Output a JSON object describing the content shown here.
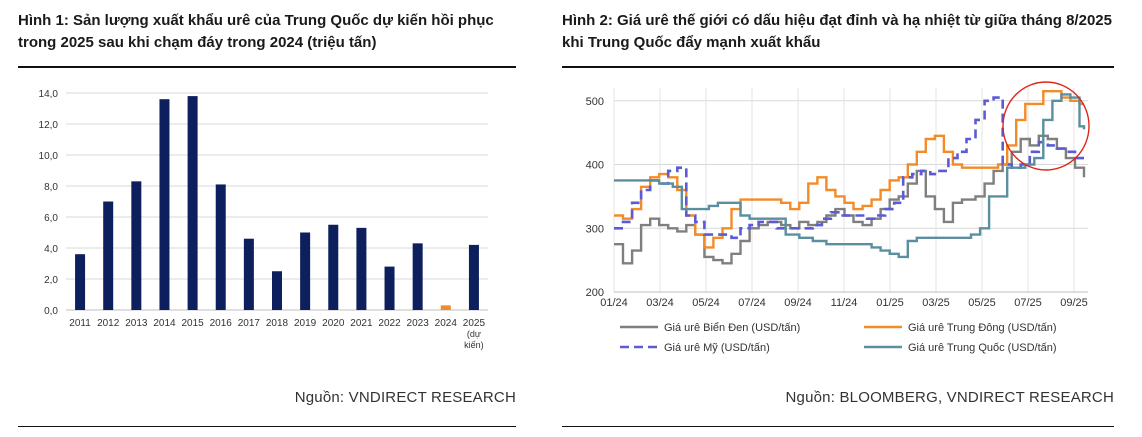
{
  "figure1": {
    "title": "Hình 1: Sản lượng xuất khẩu urê của Trung Quốc dự kiến hồi phục trong 2025 sau khi chạm đáy trong 2024 (triệu tấn)",
    "source": "Nguồn: VNDIRECT RESEARCH"
  },
  "figure2": {
    "title": "Hình 2: Giá urê thế giới có dấu hiệu đạt đỉnh và hạ nhiệt từ giữa tháng 8/2025 khi Trung Quốc đẩy mạnh xuất khẩu",
    "source": "Nguồn: BLOOMBERG, VNDIRECT RESEARCH"
  },
  "chart_data": [
    {
      "type": "bar",
      "categories": [
        "2011",
        "2012",
        "2013",
        "2014",
        "2015",
        "2016",
        "2017",
        "2018",
        "2019",
        "2020",
        "2021",
        "2022",
        "2023",
        "2024",
        "2025 (dự kiến)"
      ],
      "category_lines": [
        [
          "2011"
        ],
        [
          "2012"
        ],
        [
          "2013"
        ],
        [
          "2014"
        ],
        [
          "2015"
        ],
        [
          "2016"
        ],
        [
          "2017"
        ],
        [
          "2018"
        ],
        [
          "2019"
        ],
        [
          "2020"
        ],
        [
          "2021"
        ],
        [
          "2022"
        ],
        [
          "2023"
        ],
        [
          "2024"
        ],
        [
          "2025",
          "(dự",
          "kiến)"
        ]
      ],
      "values": [
        3.6,
        7.0,
        8.3,
        13.6,
        13.8,
        8.1,
        4.6,
        2.5,
        5.0,
        5.5,
        5.3,
        2.8,
        4.3,
        0.3,
        4.2
      ],
      "highlight_index": 13,
      "colors": {
        "bar": "#0d1f5c",
        "highlight": "#f28c28",
        "grid": "#d9d9d9"
      },
      "ylim": [
        0,
        14
      ],
      "yticks": [
        "0,0",
        "2,0",
        "4,0",
        "6,0",
        "8,0",
        "10,0",
        "12,0",
        "14,0"
      ],
      "grid": true
    },
    {
      "type": "line",
      "ylim": [
        200,
        520
      ],
      "yticks": [
        200,
        300,
        400,
        500
      ],
      "xticks": [
        "01/24",
        "03/24",
        "05/24",
        "07/24",
        "09/24",
        "11/24",
        "01/25",
        "03/25",
        "05/25",
        "07/25",
        "09/25"
      ],
      "grid": true,
      "legend_position": "bottom",
      "series": [
        {
          "name": "Giá urê Biển Đen (USD/tấn)",
          "color": "#7f7f7f",
          "dash": false,
          "values": [
            275,
            275,
            245,
            245,
            265,
            265,
            305,
            305,
            315,
            315,
            305,
            305,
            300,
            300,
            295,
            295,
            305,
            305,
            290,
            290,
            255,
            255,
            250,
            250,
            245,
            245,
            260,
            260,
            280,
            280,
            300,
            300,
            305,
            305,
            310,
            310,
            310,
            305,
            305,
            300,
            300,
            310,
            310,
            305,
            305,
            310,
            310,
            320,
            320,
            330,
            330,
            320,
            320,
            310,
            310,
            305,
            305,
            315,
            315,
            330,
            330,
            345,
            345,
            350,
            350,
            370,
            370,
            390,
            390,
            350,
            350,
            330,
            330,
            310,
            310,
            340,
            340,
            345,
            345,
            345,
            350,
            350,
            370,
            370,
            390,
            390,
            400,
            400,
            420,
            420,
            440,
            440,
            430,
            430,
            445,
            445,
            440,
            440,
            425,
            425,
            410,
            410,
            395,
            395,
            380
          ]
        },
        {
          "name": "Giá urê Trung Đông (USD/tấn)",
          "color": "#f28c28",
          "dash": false,
          "values": [
            320,
            320,
            315,
            315,
            330,
            330,
            365,
            365,
            380,
            380,
            385,
            385,
            380,
            380,
            360,
            360,
            320,
            320,
            290,
            290,
            270,
            270,
            285,
            285,
            300,
            300,
            330,
            330,
            345,
            345,
            345,
            345,
            345,
            345,
            345,
            345,
            345,
            340,
            340,
            330,
            330,
            340,
            340,
            370,
            370,
            380,
            380,
            360,
            360,
            350,
            350,
            340,
            340,
            330,
            330,
            335,
            335,
            345,
            345,
            360,
            360,
            375,
            375,
            380,
            380,
            400,
            400,
            420,
            420,
            440,
            440,
            445,
            445,
            420,
            420,
            400,
            400,
            395,
            395,
            395,
            395,
            395,
            395,
            395,
            395,
            400,
            400,
            430,
            430,
            470,
            470,
            495,
            495,
            495,
            495,
            515,
            515,
            515,
            515,
            505,
            505,
            500,
            500,
            495,
            495
          ]
        },
        {
          "name": "Giá urê Mỹ (USD/tấn)",
          "color": "#5b5bd6",
          "dash": true,
          "values": [
            300,
            300,
            310,
            310,
            340,
            340,
            360,
            360,
            375,
            375,
            370,
            370,
            390,
            390,
            395,
            395,
            320,
            320,
            310,
            310,
            290,
            290,
            290,
            290,
            290,
            290,
            285,
            285,
            300,
            300,
            305,
            305,
            310,
            310,
            310,
            310,
            300,
            300,
            300,
            300,
            300,
            300,
            300,
            300,
            305,
            305,
            315,
            315,
            325,
            325,
            320,
            320,
            320,
            320,
            320,
            320,
            315,
            315,
            320,
            320,
            330,
            330,
            340,
            340,
            380,
            380,
            385,
            385,
            390,
            390,
            385,
            385,
            390,
            390,
            410,
            410,
            420,
            420,
            440,
            440,
            470,
            470,
            500,
            500,
            505,
            505,
            400,
            400,
            395,
            395,
            400,
            400,
            420,
            420,
            435,
            435,
            430,
            430,
            425,
            425,
            420,
            420,
            410,
            410,
            410
          ]
        },
        {
          "name": "Giá urê Trung Quốc (USD/tấn)",
          "color": "#5b8fa0",
          "dash": false,
          "values": [
            375,
            375,
            375,
            375,
            375,
            375,
            375,
            375,
            375,
            375,
            370,
            370,
            370,
            365,
            365,
            330,
            330,
            330,
            330,
            330,
            330,
            335,
            335,
            340,
            340,
            340,
            340,
            340,
            320,
            320,
            315,
            315,
            315,
            315,
            315,
            315,
            315,
            315,
            290,
            290,
            290,
            285,
            285,
            285,
            280,
            280,
            280,
            275,
            275,
            275,
            275,
            275,
            275,
            275,
            275,
            275,
            275,
            270,
            270,
            265,
            265,
            260,
            260,
            255,
            255,
            280,
            280,
            285,
            285,
            285,
            285,
            285,
            285,
            285,
            285,
            285,
            285,
            285,
            285,
            290,
            290,
            300,
            300,
            350,
            350,
            350,
            350,
            395,
            395,
            395,
            395,
            400,
            400,
            410,
            410,
            470,
            470,
            500,
            500,
            510,
            510,
            505,
            505,
            460,
            455
          ]
        }
      ]
    }
  ]
}
